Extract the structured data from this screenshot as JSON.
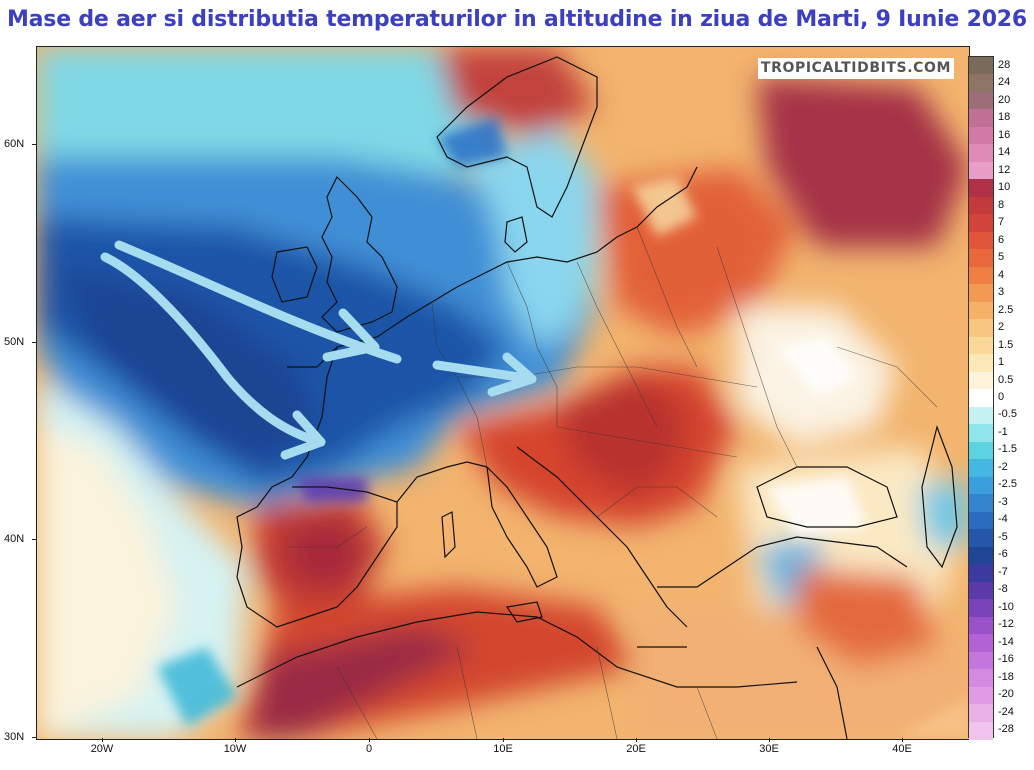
{
  "title": "Mase de aer si distributia temperaturilor in altitudine in ziua de Marti, 9 Iunie 2026",
  "watermark": "TROPICALTIDBITS.COM",
  "map": {
    "lat_labels": [
      "60N",
      "50N",
      "40N",
      "30N"
    ],
    "lon_labels": [
      "20W",
      "10W",
      "0",
      "10E",
      "20E",
      "30E",
      "40E"
    ],
    "arrows": [
      {
        "name": "atlantic-southern-arrow",
        "color": "#9fd7f0"
      },
      {
        "name": "atlantic-northern-arrow",
        "color": "#9fd7f0"
      },
      {
        "name": "france-germany-arrow",
        "color": "#9fd7f0"
      }
    ]
  },
  "colorbar": {
    "labels": [
      "28",
      "24",
      "20",
      "18",
      "16",
      "14",
      "12",
      "10",
      "8",
      "7",
      "6",
      "5",
      "4",
      "3",
      "2.5",
      "2",
      "1.5",
      "1",
      "0.5",
      "0",
      "-0.5",
      "-1",
      "-1.5",
      "-2",
      "-2.5",
      "-3",
      "-4",
      "-5",
      "-6",
      "-7",
      "-8",
      "-10",
      "-12",
      "-14",
      "-16",
      "-18",
      "-20",
      "-24",
      "-28"
    ],
    "colors": [
      "#7a6a5c",
      "#8e7464",
      "#9b6e78",
      "#c07094",
      "#d27aa6",
      "#e08ab8",
      "#e99ec8",
      "#b03048",
      "#c23a3a",
      "#d2433a",
      "#e0553a",
      "#e8683c",
      "#ef7f42",
      "#f39a52",
      "#f6b068",
      "#f8c680",
      "#fad998",
      "#fce8b6",
      "#fdf3d8",
      "#ffffff",
      "#c6f2f2",
      "#8ee6ea",
      "#5dd3e2",
      "#45b8e2",
      "#3a9fdc",
      "#3484d0",
      "#2c6cc0",
      "#2456aa",
      "#1e4596",
      "#3a3aa0",
      "#5a3aa8",
      "#7a42b8",
      "#9a52c8",
      "#b262d4",
      "#c476dc",
      "#d48ae2",
      "#e29ce6",
      "#e9b0e8",
      "#f0c4ec"
    ]
  }
}
